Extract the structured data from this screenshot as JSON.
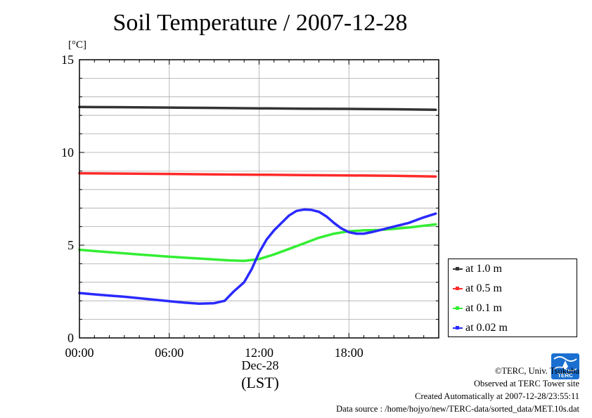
{
  "title": "Soil Temperature / 2007-12-28",
  "unit_label": "[°C]",
  "x_axis": {
    "date_label": "Dec-28",
    "tz_label": "(LST)"
  },
  "legend": {
    "items": [
      {
        "label": "at 1.0 m",
        "color": "#333333"
      },
      {
        "label": "at 0.5 m",
        "color": "#ff2a2a"
      },
      {
        "label": "at 0.1 m",
        "color": "#33ee33"
      },
      {
        "label": "at 0.02 m",
        "color": "#2a2aff"
      }
    ]
  },
  "footer": {
    "copyright": "©TERC, Univ. Tsukuba",
    "observed": "Observed at TERC Tower site",
    "created": "Created Automatically at 2007-12-28/23:55:11",
    "source": "Data source : /home/hojyo/new/TERC-data/sorted_data/MET.10s.dat"
  },
  "logo": {
    "text": "TERC",
    "color": "#1a6fd0"
  },
  "chart_data": {
    "type": "line",
    "title": "Soil Temperature / 2007-12-28",
    "ylabel": "[°C]",
    "xlabel": "Dec-28 (LST)",
    "xlim": [
      0,
      24
    ],
    "ylim": [
      0,
      15
    ],
    "x_ticks": [
      0,
      6,
      12,
      18
    ],
    "x_tick_labels": [
      "00:00",
      "06:00",
      "12:00",
      "18:00"
    ],
    "y_ticks": [
      0,
      5,
      10,
      15
    ],
    "y_tick_labels": [
      "0",
      "5",
      "10",
      "15"
    ],
    "grid": true,
    "legend_position": "right",
    "series": [
      {
        "name": "at 1.0 m",
        "color": "#333333",
        "points": [
          [
            0,
            12.45
          ],
          [
            3,
            12.44
          ],
          [
            6,
            12.42
          ],
          [
            9,
            12.4
          ],
          [
            12,
            12.38
          ],
          [
            15,
            12.36
          ],
          [
            18,
            12.35
          ],
          [
            21,
            12.33
          ],
          [
            23.8,
            12.3
          ]
        ]
      },
      {
        "name": "at 0.5 m",
        "color": "#ff2a2a",
        "points": [
          [
            0,
            8.88
          ],
          [
            3,
            8.86
          ],
          [
            6,
            8.84
          ],
          [
            9,
            8.82
          ],
          [
            12,
            8.8
          ],
          [
            15,
            8.78
          ],
          [
            18,
            8.76
          ],
          [
            21,
            8.74
          ],
          [
            23.8,
            8.7
          ]
        ]
      },
      {
        "name": "at 0.1 m",
        "color": "#33ee33",
        "points": [
          [
            0,
            4.75
          ],
          [
            2,
            4.62
          ],
          [
            4,
            4.5
          ],
          [
            6,
            4.38
          ],
          [
            8,
            4.28
          ],
          [
            10,
            4.18
          ],
          [
            11,
            4.15
          ],
          [
            12,
            4.25
          ],
          [
            13,
            4.5
          ],
          [
            14,
            4.8
          ],
          [
            15,
            5.1
          ],
          [
            16,
            5.4
          ],
          [
            17,
            5.62
          ],
          [
            18,
            5.75
          ],
          [
            19,
            5.8
          ],
          [
            20,
            5.82
          ],
          [
            21,
            5.88
          ],
          [
            22,
            5.95
          ],
          [
            23,
            6.05
          ],
          [
            23.8,
            6.12
          ]
        ]
      },
      {
        "name": "at 0.02 m",
        "color": "#2a2aff",
        "points": [
          [
            0,
            2.42
          ],
          [
            1,
            2.35
          ],
          [
            2,
            2.28
          ],
          [
            3,
            2.22
          ],
          [
            4,
            2.14
          ],
          [
            5,
            2.06
          ],
          [
            6,
            1.98
          ],
          [
            7,
            1.9
          ],
          [
            8,
            1.85
          ],
          [
            9,
            1.87
          ],
          [
            9.7,
            2.0
          ],
          [
            10.3,
            2.5
          ],
          [
            11,
            3.0
          ],
          [
            11.5,
            3.7
          ],
          [
            12,
            4.6
          ],
          [
            12.5,
            5.3
          ],
          [
            13,
            5.8
          ],
          [
            13.5,
            6.2
          ],
          [
            14,
            6.6
          ],
          [
            14.5,
            6.85
          ],
          [
            15,
            6.92
          ],
          [
            15.5,
            6.9
          ],
          [
            16,
            6.8
          ],
          [
            16.5,
            6.55
          ],
          [
            17,
            6.2
          ],
          [
            17.5,
            5.9
          ],
          [
            18,
            5.7
          ],
          [
            18.5,
            5.62
          ],
          [
            19,
            5.62
          ],
          [
            19.5,
            5.7
          ],
          [
            20,
            5.8
          ],
          [
            21,
            6.0
          ],
          [
            22,
            6.2
          ],
          [
            23,
            6.5
          ],
          [
            23.8,
            6.7
          ]
        ]
      }
    ]
  }
}
